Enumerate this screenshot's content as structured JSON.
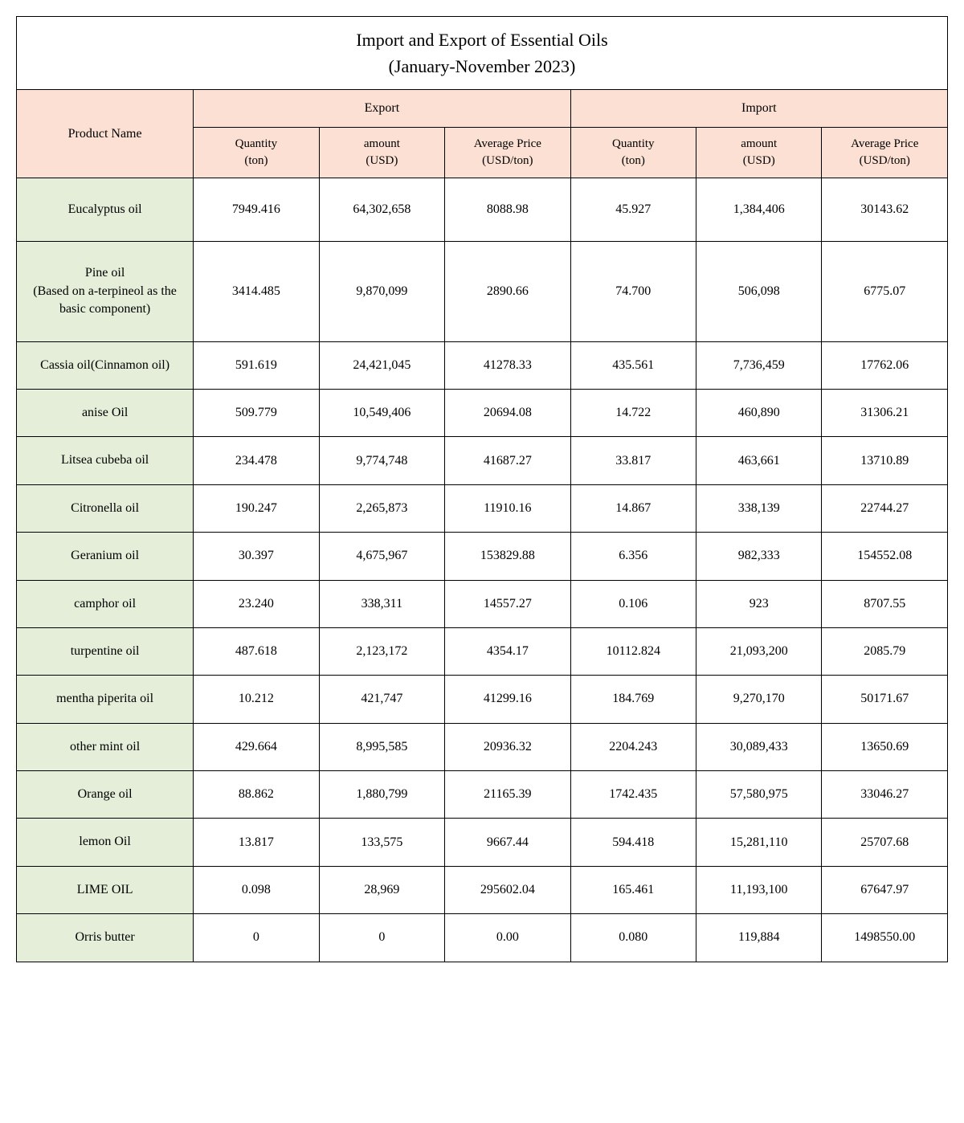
{
  "title_line1": "Import and Export of Essential Oils",
  "title_line2": "(January-November 2023)",
  "headers": {
    "product_name": "Product Name",
    "export": "Export",
    "import": "Import",
    "qty": "Quantity",
    "qty_unit": "(ton)",
    "amount": "amount",
    "amount_unit": "(USD)",
    "avg": "Average Price",
    "avg_unit": "(USD/ton)"
  },
  "rows": [
    {
      "name": "Eucalyptus oil",
      "eq": "7949.416",
      "ea": "64,302,658",
      "ep": "8088.98",
      "iq": "45.927",
      "ia": "1,384,406",
      "ip": "30143.62",
      "tall": true
    },
    {
      "name": "Pine oil\n(Based on a-terpineol as the basic component)",
      "eq": "3414.485",
      "ea": "9,870,099",
      "ep": "2890.66",
      "iq": "74.700",
      "ia": "506,098",
      "ip": "6775.07",
      "tall": true
    },
    {
      "name": "Cassia oil(Cinnamon oil)",
      "eq": "591.619",
      "ea": "24,421,045",
      "ep": "41278.33",
      "iq": "435.561",
      "ia": "7,736,459",
      "ip": "17762.06"
    },
    {
      "name": "anise Oil",
      "eq": "509.779",
      "ea": "10,549,406",
      "ep": "20694.08",
      "iq": "14.722",
      "ia": "460,890",
      "ip": "31306.21"
    },
    {
      "name": "Litsea cubeba oil",
      "eq": "234.478",
      "ea": "9,774,748",
      "ep": "41687.27",
      "iq": "33.817",
      "ia": "463,661",
      "ip": "13710.89"
    },
    {
      "name": "Citronella oil",
      "eq": "190.247",
      "ea": "2,265,873",
      "ep": "11910.16",
      "iq": "14.867",
      "ia": "338,139",
      "ip": "22744.27"
    },
    {
      "name": "Geranium oil",
      "eq": "30.397",
      "ea": "4,675,967",
      "ep": "153829.88",
      "iq": "6.356",
      "ia": "982,333",
      "ip": "154552.08"
    },
    {
      "name": "camphor oil",
      "eq": "23.240",
      "ea": "338,311",
      "ep": "14557.27",
      "iq": "0.106",
      "ia": "923",
      "ip": "8707.55"
    },
    {
      "name": "turpentine oil",
      "eq": "487.618",
      "ea": "2,123,172",
      "ep": "4354.17",
      "iq": "10112.824",
      "ia": "21,093,200",
      "ip": "2085.79"
    },
    {
      "name": "mentha piperita oil",
      "eq": "10.212",
      "ea": "421,747",
      "ep": "41299.16",
      "iq": "184.769",
      "ia": "9,270,170",
      "ip": "50171.67"
    },
    {
      "name": "other mint oil",
      "eq": "429.664",
      "ea": "8,995,585",
      "ep": "20936.32",
      "iq": "2204.243",
      "ia": "30,089,433",
      "ip": "13650.69"
    },
    {
      "name": "Orange oil",
      "eq": "88.862",
      "ea": "1,880,799",
      "ep": "21165.39",
      "iq": "1742.435",
      "ia": "57,580,975",
      "ip": "33046.27"
    },
    {
      "name": "lemon Oil",
      "eq": "13.817",
      "ea": "133,575",
      "ep": "9667.44",
      "iq": "594.418",
      "ia": "15,281,110",
      "ip": "25707.68"
    },
    {
      "name": "LIME OIL",
      "eq": "0.098",
      "ea": "28,969",
      "ep": "295602.04",
      "iq": "165.461",
      "ia": "11,193,100",
      "ip": "67647.97"
    },
    {
      "name": "Orris butter",
      "eq": "0",
      "ea": "0",
      "ep": "0.00",
      "iq": "0.080",
      "ia": "119,884",
      "ip": "1498550.00"
    }
  ],
  "colors": {
    "header_bg": "#fbe0d3",
    "product_bg": "#e4eed8",
    "border": "#000000",
    "background": "#ffffff"
  }
}
